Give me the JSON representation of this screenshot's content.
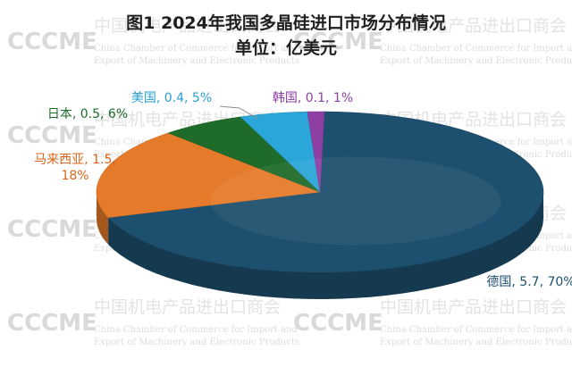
{
  "chart_data": {
    "type": "pie",
    "style": "3d",
    "title": "图1  2024年我国多晶硅进口市场分布情况",
    "subtitle": "单位：亿美元",
    "slices": [
      {
        "name": "德国",
        "value": 5.7,
        "percent": 70,
        "label": "德国, 5.7, 70%",
        "color": "#1d4f6e",
        "label_color": "#1d4f6e"
      },
      {
        "name": "马来西亚",
        "value": 1.5,
        "percent": 18,
        "label_line1": "马来西亚, 1.5,",
        "label_line2": "18%",
        "color": "#e57a2a",
        "label_color": "#d9651a"
      },
      {
        "name": "日本",
        "value": 0.5,
        "percent": 6,
        "label": "日本, 0.5, 6%",
        "color": "#1f6b2a",
        "label_color": "#1e6b2a"
      },
      {
        "name": "美国",
        "value": 0.4,
        "percent": 5,
        "label": "美国, 0.4, 5%",
        "color": "#2aa6d8",
        "label_color": "#2a9fd0"
      },
      {
        "name": "韩国",
        "value": 0.1,
        "percent": 1,
        "label": "韩国, 0.1, 1%",
        "color": "#8e3fa3",
        "label_color": "#8e3fa3"
      }
    ]
  },
  "watermark": {
    "logo": "CCCME",
    "cn": "中国机电产品进出口商会",
    "en1": "China Chamber of Commerce for Import and",
    "en2": "Export of Machinery and Electronic Products"
  }
}
